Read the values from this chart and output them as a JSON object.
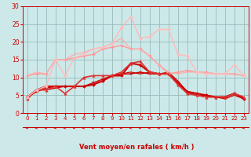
{
  "x": [
    0,
    1,
    2,
    3,
    4,
    5,
    6,
    7,
    8,
    9,
    10,
    11,
    12,
    13,
    14,
    15,
    16,
    17,
    18,
    19,
    20,
    21,
    22,
    23
  ],
  "series": [
    {
      "y": [
        4.5,
        6.5,
        7.5,
        7.5,
        7.5,
        7.5,
        7.5,
        8.0,
        9.0,
        10.5,
        10.5,
        14.0,
        13.5,
        11.5,
        11.0,
        11.0,
        8.5,
        6.0,
        5.5,
        5.0,
        4.5,
        4.5,
        5.5,
        4.0
      ],
      "color": "#cc0000",
      "lw": 1.5,
      "marker": "D",
      "ms": 2.0
    },
    {
      "y": [
        4.5,
        6.0,
        7.0,
        7.5,
        7.5,
        7.5,
        7.5,
        8.5,
        9.5,
        10.5,
        11.0,
        11.0,
        11.5,
        11.0,
        11.0,
        11.0,
        8.0,
        5.5,
        5.0,
        5.0,
        4.5,
        4.5,
        5.5,
        4.0
      ],
      "color": "#cc0000",
      "lw": 1.0,
      "marker": "s",
      "ms": 1.8
    },
    {
      "y": [
        4.0,
        6.5,
        6.5,
        7.0,
        7.5,
        7.5,
        7.5,
        8.0,
        9.0,
        10.5,
        11.0,
        11.5,
        11.0,
        11.5,
        11.0,
        11.5,
        9.0,
        6.0,
        5.0,
        4.5,
        4.5,
        4.0,
        5.0,
        4.0
      ],
      "color": "#cc0000",
      "lw": 0.9,
      "marker": null,
      "ms": 0
    },
    {
      "y": [
        10.5,
        11.0,
        11.0,
        15.0,
        15.0,
        15.5,
        16.0,
        16.5,
        18.0,
        18.5,
        19.0,
        18.0,
        18.0,
        16.0,
        13.5,
        11.0,
        11.5,
        12.0,
        11.5,
        11.5,
        11.0,
        11.0,
        11.0,
        10.5
      ],
      "color": "#ff9999",
      "lw": 1.0,
      "marker": "D",
      "ms": 2.0
    },
    {
      "y": [
        10.5,
        11.5,
        11.0,
        15.0,
        15.0,
        16.5,
        17.0,
        18.0,
        18.5,
        19.5,
        21.0,
        18.0,
        18.0,
        16.0,
        13.5,
        11.5,
        11.0,
        11.5,
        11.5,
        11.5,
        11.0,
        11.0,
        11.0,
        10.5
      ],
      "color": "#ffaaaa",
      "lw": 0.9,
      "marker": null,
      "ms": 0
    },
    {
      "y": [
        4.0,
        6.5,
        6.5,
        7.5,
        5.5,
        7.5,
        10.0,
        10.5,
        10.5,
        10.5,
        11.5,
        14.0,
        14.5,
        11.5,
        11.0,
        11.0,
        8.0,
        5.5,
        5.0,
        4.5,
        4.5,
        4.5,
        5.5,
        4.5
      ],
      "color": "#dd3333",
      "lw": 1.2,
      "marker": "^",
      "ms": 2.5
    },
    {
      "y": [
        4.5,
        6.5,
        7.5,
        15.0,
        10.5,
        15.5,
        16.5,
        18.0,
        18.5,
        19.5,
        24.0,
        27.0,
        21.0,
        21.5,
        23.5,
        23.5,
        16.5,
        16.0,
        11.5,
        11.0,
        11.0,
        11.0,
        13.5,
        10.5
      ],
      "color": "#ffbbbb",
      "lw": 1.0,
      "marker": "D",
      "ms": 2.0
    }
  ],
  "xlim": [
    -0.5,
    23.5
  ],
  "ylim": [
    0,
    30
  ],
  "yticks": [
    0,
    5,
    10,
    15,
    20,
    25,
    30
  ],
  "xticks": [
    0,
    1,
    2,
    3,
    4,
    5,
    6,
    7,
    8,
    9,
    10,
    11,
    12,
    13,
    14,
    15,
    16,
    17,
    18,
    19,
    20,
    21,
    22,
    23
  ],
  "xlabel": "Vent moyen/en rafales ( km/h )",
  "bg_color": "#cce8e8",
  "grid_color": "#99bbbb",
  "line_color": "#cc0000",
  "text_color": "#cc0000"
}
